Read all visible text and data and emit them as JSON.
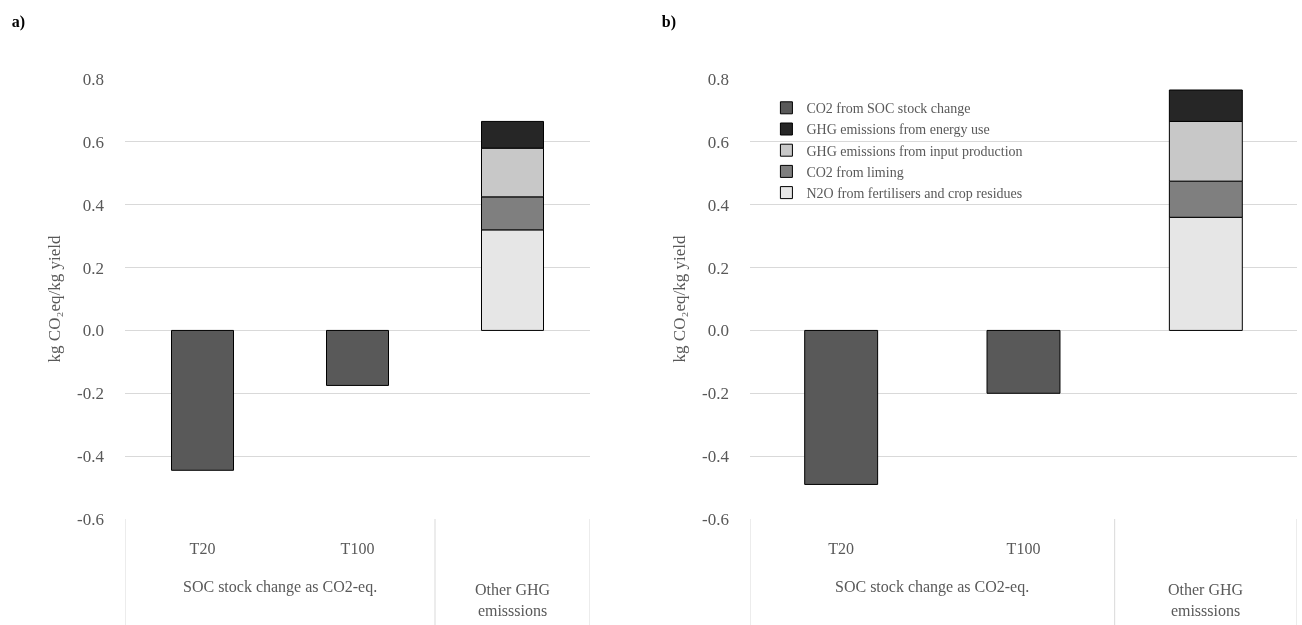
{
  "chart_data": [
    {
      "type": "bar",
      "title": "a)",
      "ylabel": "kg CO₂eq/kg yield",
      "categories": [
        "T20",
        "T100",
        null
      ],
      "stacked": true,
      "grid": "y",
      "legend": false,
      "series": [
        {
          "color": "#e6e6e6",
          "values": [
            null,
            null,
            0.32
          ]
        },
        {
          "color": "#7f7f7f",
          "values": [
            null,
            null,
            0.105
          ]
        },
        {
          "color": "#c8c8c8",
          "values": [
            null,
            null,
            0.155
          ]
        },
        {
          "color": "#262626",
          "values": [
            null,
            null,
            0.085
          ]
        },
        {
          "color": "#595959",
          "values": [
            -0.445,
            -0.175,
            null
          ]
        }
      ],
      "ylim": [
        -0.6,
        0.8
      ],
      "yticks": [
        -0.6,
        -0.4,
        -0.2,
        {
          "value": 0,
          "label": "0.0"
        },
        0.2,
        0.4,
        0.6,
        0.8
      ],
      "annotations": [
        "SOC stock change as CO2-eq.",
        "Other GHG emisssions"
      ]
    },
    {
      "type": "bar",
      "title": "b)",
      "ylabel": "kg CO₂eq/kg yield",
      "categories": [
        "T20",
        "T100",
        null
      ],
      "stacked": true,
      "grid": "y",
      "legend": "top left",
      "series": [
        {
          "name": "N2O from fertilisers and crop residues",
          "color": "#e6e6e6",
          "values": [
            null,
            null,
            0.36
          ]
        },
        {
          "name": "CO2 from liming",
          "color": "#7f7f7f",
          "values": [
            null,
            null,
            0.115
          ]
        },
        {
          "name": "GHG emissions from input production",
          "color": "#c8c8c8",
          "values": [
            null,
            null,
            0.19
          ]
        },
        {
          "name": "GHG emissions from energy use",
          "color": "#262626",
          "values": [
            null,
            null,
            0.1
          ]
        },
        {
          "name": "CO2 from SOC stock change",
          "color": "#595959",
          "values": [
            -0.49,
            -0.2,
            null
          ]
        }
      ],
      "ylim": [
        -0.6,
        0.8
      ],
      "yticks": [
        -0.6,
        -0.4,
        -0.2,
        {
          "value": 0,
          "label": "0.0"
        },
        0.2,
        0.4,
        0.6,
        0.8
      ],
      "annotations": [
        "SOC stock change as CO2-eq.",
        "Other GHG emisssions"
      ]
    }
  ]
}
